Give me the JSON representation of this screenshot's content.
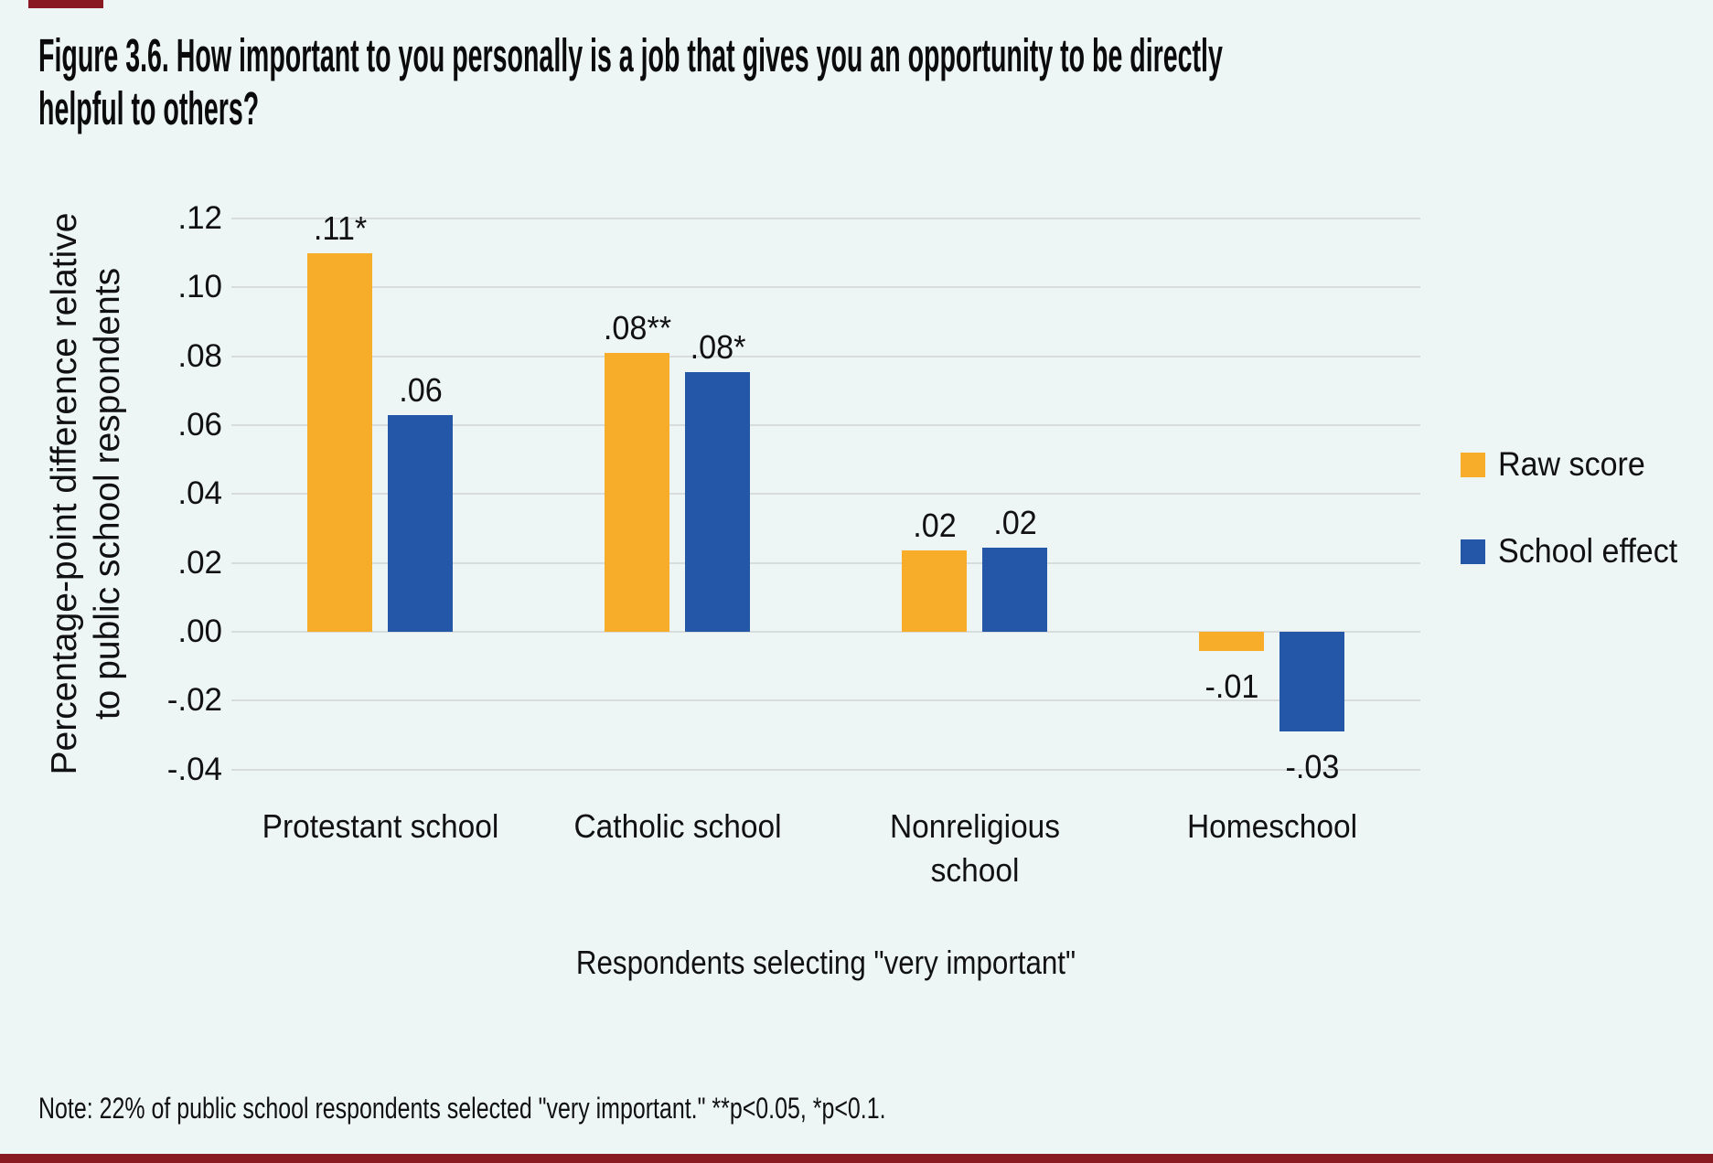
{
  "figure": {
    "background": "#EDF6F5",
    "accent_color": "#8A1A22",
    "text_color": "#111111",
    "title": "Figure 3.6. How important to you personally is a job that gives you an opportunity to be directly helpful to others?",
    "title_lines": [
      "Figure 3.6. How important to you personally is a job that gives you an opportunity to be directly",
      "helpful to others?"
    ],
    "note": "Note: 22% of public school respondents selected \"very important.\" **p<0.05, *p<0.1."
  },
  "chart_data": {
    "type": "bar",
    "title": "Figure 3.6. How important to you personally is a job that gives you an opportunity to be directly helpful to others?",
    "categories": [
      "Protestant school",
      "Catholic school",
      "Nonreligious school",
      "Homeschool"
    ],
    "categories_lines": [
      [
        "Protestant school"
      ],
      [
        "Catholic school"
      ],
      [
        "Nonreligious",
        "school"
      ],
      [
        "Homeschool"
      ]
    ],
    "series": [
      {
        "name": "Raw score",
        "color": "#F8AD2A",
        "values": [
          0.11,
          0.08,
          0.02,
          -0.01
        ],
        "value_labels": [
          ".11*",
          ".08**",
          ".02",
          "-.01"
        ],
        "render_values": [
          0.11,
          0.081,
          0.0235,
          -0.0055
        ]
      },
      {
        "name": "School effect",
        "color": "#2557A8",
        "values": [
          0.06,
          0.08,
          0.02,
          -0.03
        ],
        "value_labels": [
          ".06",
          ".08*",
          ".02",
          "-.03"
        ],
        "render_values": [
          0.063,
          0.0755,
          0.0245,
          -0.029
        ]
      }
    ],
    "xlabel": "Respondents selecting \"very important\"",
    "ylabel": "Percentage-point difference relative to public school respondents",
    "ylabel_lines": [
      "Percentage-point difference relative",
      "to public school respondents"
    ],
    "yticks": [
      {
        "label": ".12",
        "value": 0.12
      },
      {
        "label": ".10",
        "value": 0.1
      },
      {
        "label": ".08",
        "value": 0.08
      },
      {
        "label": ".06",
        "value": 0.06
      },
      {
        "label": ".04",
        "value": 0.04
      },
      {
        "label": ".02",
        "value": 0.02
      },
      {
        "label": ".00",
        "value": 0.0
      },
      {
        "label": "-.02",
        "value": -0.02
      },
      {
        "label": "-.04",
        "value": -0.04
      }
    ],
    "ylim": [
      -0.04,
      0.12
    ],
    "grid": true,
    "gridline_color": "#D8DDDC",
    "legend": [
      "Raw score",
      "School effect"
    ],
    "legend_position": "right"
  }
}
